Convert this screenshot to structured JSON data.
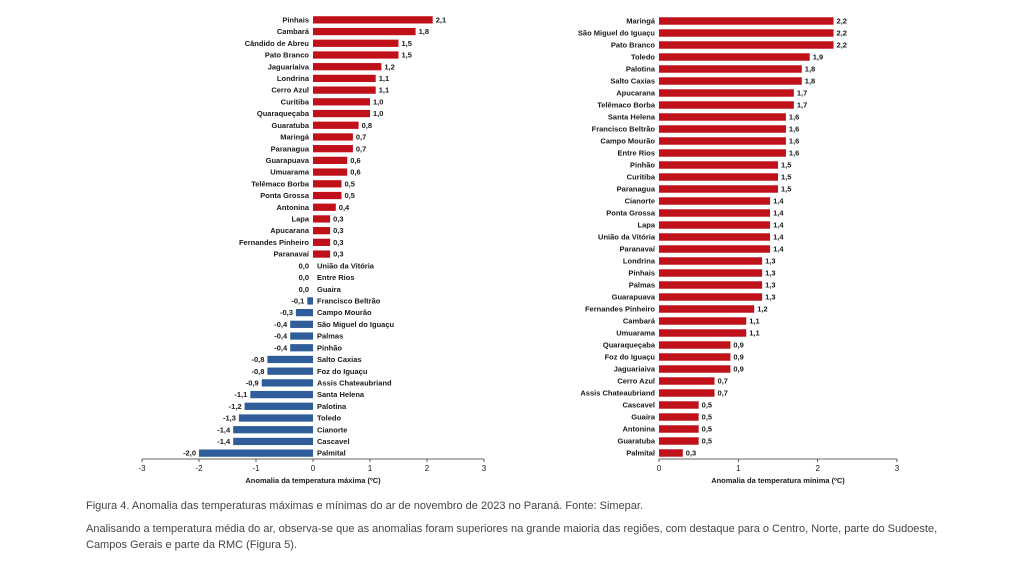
{
  "chart_data": [
    {
      "type": "bar",
      "orientation": "horizontal",
      "xlabel": "Anomalia da temperatura máxima (ºC)",
      "xlim": [
        -3,
        3
      ],
      "xticks": [
        "-3",
        "-2",
        "-1",
        "0",
        "1",
        "2",
        "3"
      ],
      "colors": {
        "positive": "#c0101a",
        "negative": "#2e5d9a"
      },
      "categories": [
        "Pinhais",
        "Cambará",
        "Cândido de Abreu",
        "Pato Branco",
        "Jaguariaiva",
        "Londrina",
        "Cerro Azul",
        "Curitiba",
        "Quaraqueçaba",
        "Guaratuba",
        "Maringá",
        "Paranagua",
        "Guarapuava",
        "Umuarama",
        "Telêmaco Borba",
        "Ponta Grossa",
        "Antonina",
        "Lapa",
        "Apucarana",
        "Fernandes Pinheiro",
        "Paranavaí",
        "União da Vitória",
        "Entre Rios",
        "Guaira",
        "Francisco Beltrão",
        "Campo Mourão",
        "São Miguel do Iguaçu",
        "Palmas",
        "Pinhão",
        "Salto Caxias",
        "Foz do Iguaçu",
        "Assis Chateaubriand",
        "Santa Helena",
        "Palotina",
        "Toledo",
        "Cianorte",
        "Cascavel",
        "Palmital"
      ],
      "values": [
        2.1,
        1.8,
        1.5,
        1.5,
        1.2,
        1.1,
        1.1,
        1.0,
        1.0,
        0.8,
        0.7,
        0.7,
        0.6,
        0.6,
        0.5,
        0.5,
        0.4,
        0.3,
        0.3,
        0.3,
        0.3,
        0.0,
        0.0,
        0.0,
        -0.1,
        -0.3,
        -0.4,
        -0.4,
        -0.4,
        -0.8,
        -0.8,
        -0.9,
        -1.1,
        -1.2,
        -1.3,
        -1.4,
        -1.4,
        -2.0
      ],
      "value_labels": [
        "2,1",
        "1,8",
        "1,5",
        "1,5",
        "1,2",
        "1,1",
        "1,1",
        "1,0",
        "1,0",
        "0,8",
        "0,7",
        "0,7",
        "0,6",
        "0,6",
        "0,5",
        "0,5",
        "0,4",
        "0,3",
        "0,3",
        "0,3",
        "0,3",
        "0,0",
        "0,0",
        "0,0",
        "-0,1",
        "-0,3",
        "-0,4",
        "-0,4",
        "-0,4",
        "-0,8",
        "-0,8",
        "-0,9",
        "-1,1",
        "-1,2",
        "-1,3",
        "-1,4",
        "-1,4",
        "-2,0"
      ]
    },
    {
      "type": "bar",
      "orientation": "horizontal",
      "xlabel": "Anomalia da temperatura mínima (ºC)",
      "xlim": [
        0,
        3
      ],
      "xticks": [
        "0",
        "1",
        "2",
        "3"
      ],
      "colors": {
        "positive": "#c0101a",
        "negative": "#2e5d9a"
      },
      "categories": [
        "Maringá",
        "São Miguel do Iguaçu",
        "Pato Branco",
        "Toledo",
        "Palotina",
        "Salto Caxias",
        "Apucarana",
        "Telêmaco Borba",
        "Santa Helena",
        "Francisco Beltrão",
        "Campo Mourão",
        "Entre Rios",
        "Pinhão",
        "Curitiba",
        "Paranagua",
        "Cianorte",
        "Ponta Grossa",
        "Lapa",
        "União da Vitória",
        "Paranavaí",
        "Londrina",
        "Pinhais",
        "Palmas",
        "Guarapuava",
        "Fernandes Pinheiro",
        "Cambará",
        "Umuarama",
        "Quaraqueçaba",
        "Foz do Iguaçu",
        "Jaguariaiva",
        "Cerro Azul",
        "Assis Chateaubriand",
        "Cascavel",
        "Guaira",
        "Antonina",
        "Guaratuba",
        "Palmital"
      ],
      "values": [
        2.2,
        2.2,
        2.2,
        1.9,
        1.8,
        1.8,
        1.7,
        1.7,
        1.6,
        1.6,
        1.6,
        1.6,
        1.5,
        1.5,
        1.5,
        1.4,
        1.4,
        1.4,
        1.4,
        1.4,
        1.3,
        1.3,
        1.3,
        1.3,
        1.2,
        1.1,
        1.1,
        0.9,
        0.9,
        0.9,
        0.7,
        0.7,
        0.5,
        0.5,
        0.5,
        0.5,
        0.3
      ],
      "value_labels": [
        "2,2",
        "2,2",
        "2,2",
        "1,9",
        "1,8",
        "1,8",
        "1,7",
        "1,7",
        "1,6",
        "1,6",
        "1,6",
        "1,6",
        "1,5",
        "1,5",
        "1,5",
        "1,4",
        "1,4",
        "1,4",
        "1,4",
        "1,4",
        "1,3",
        "1,3",
        "1,3",
        "1,3",
        "1,2",
        "1,1",
        "1,1",
        "0,9",
        "0,9",
        "0,9",
        "0,7",
        "0,7",
        "0,5",
        "0,5",
        "0,5",
        "0,5",
        "0,3"
      ]
    }
  ],
  "caption": "Figura 4. Anomalia das temperaturas máximas e mínimas do ar de novembro de 2023 no Paraná. Fonte: Simepar.",
  "paragraph": "Analisando a temperatura média do ar, observa-se que as anomalias foram superiores na grande maioria das regiões, com destaque para o Centro, Norte, parte do Sudoeste, Campos Gerais e parte da RMC (Figura 5)."
}
